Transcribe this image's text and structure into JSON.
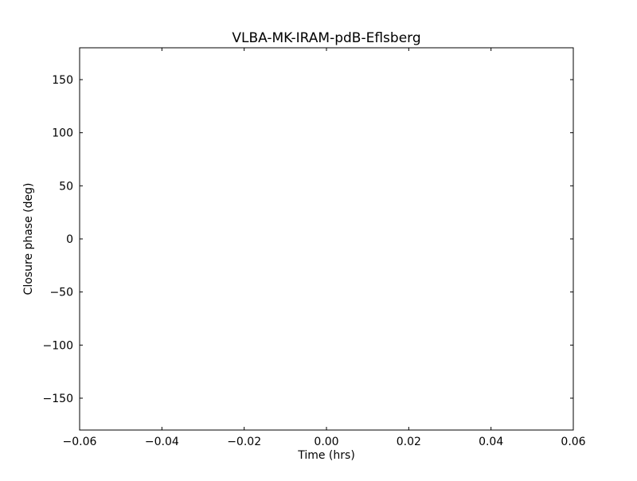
{
  "chart_data": {
    "type": "scatter",
    "title": "VLBA-MK-IRAM-pdB-Eflsberg",
    "xlabel": "Time (hrs)",
    "ylabel": "Closure phase (deg)",
    "xlim": [
      -0.06,
      0.06
    ],
    "ylim": [
      -180,
      180
    ],
    "xticks": [
      -0.06,
      -0.04,
      -0.02,
      0.0,
      0.02,
      0.04,
      0.06
    ],
    "xtick_labels": [
      "−0.06",
      "−0.04",
      "−0.02",
      "0.00",
      "0.02",
      "0.04",
      "0.06"
    ],
    "yticks": [
      150,
      100,
      50,
      0,
      -50,
      -100,
      -150
    ],
    "ytick_labels": [
      "150",
      "100",
      "50",
      "0",
      "−50",
      "−100",
      "−150"
    ],
    "grid": false,
    "series": []
  }
}
